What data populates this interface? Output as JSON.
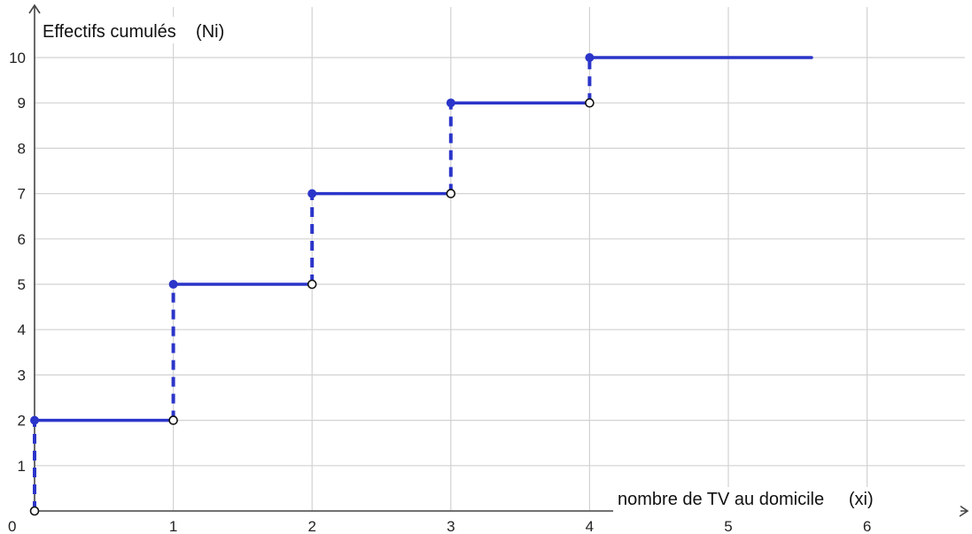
{
  "chart_data": {
    "type": "line",
    "subtype": "step-cumulative-frequency",
    "ylabel": "Effectifs cumulés    (Ni)",
    "xlabel": "nombre de TV au domicile     (xi)",
    "xlim": [
      0,
      6.6
    ],
    "ylim": [
      0,
      10.9
    ],
    "x_ticks": [
      "0",
      "1",
      "2",
      "3",
      "4",
      "5",
      "6"
    ],
    "y_ticks": [
      "1",
      "2",
      "3",
      "4",
      "5",
      "6",
      "7",
      "8",
      "9",
      "10"
    ],
    "grid": true,
    "steps": [
      {
        "x_start": 0,
        "x_end": 1,
        "y": 2
      },
      {
        "x_start": 1,
        "x_end": 2,
        "y": 5
      },
      {
        "x_start": 2,
        "x_end": 3,
        "y": 7
      },
      {
        "x_start": 3,
        "x_end": 4,
        "y": 9
      },
      {
        "x_start": 4,
        "x_end": 5.6,
        "y": 10
      }
    ],
    "jumps": [
      {
        "x": 0,
        "from": 0,
        "to": 2
      },
      {
        "x": 1,
        "from": 2,
        "to": 5
      },
      {
        "x": 2,
        "from": 5,
        "to": 7
      },
      {
        "x": 3,
        "from": 7,
        "to": 9
      },
      {
        "x": 4,
        "from": 9,
        "to": 10
      }
    ],
    "colors": {
      "series": "#2b35c9",
      "grid": "#d2d2d2",
      "axis": "#444444",
      "open_point_stroke": "#111111"
    }
  }
}
